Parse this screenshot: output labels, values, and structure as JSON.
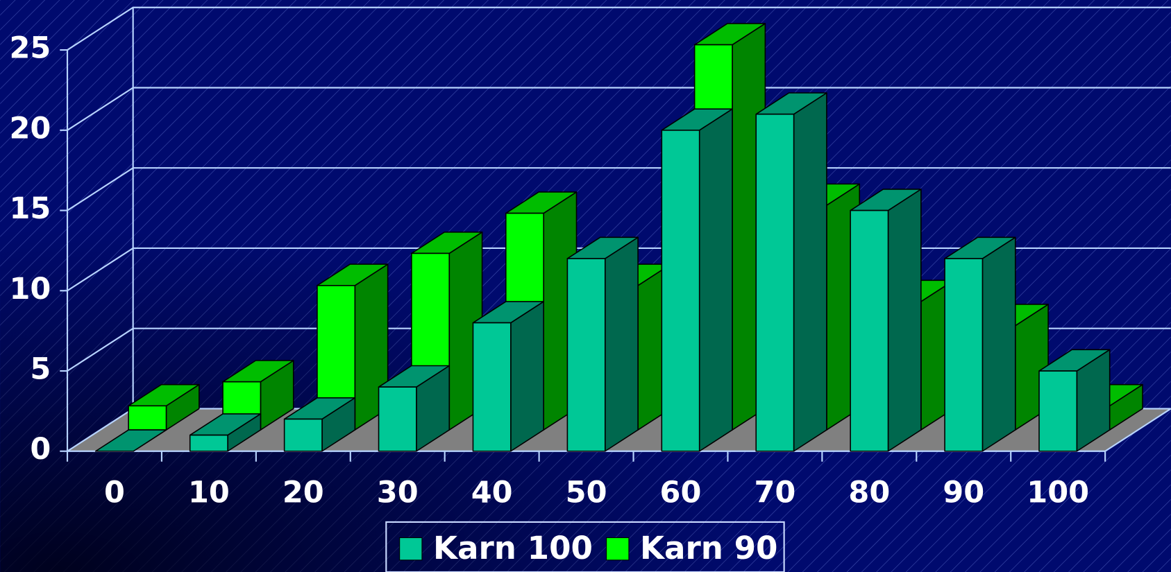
{
  "chart_data": {
    "type": "bar3d",
    "categories": [
      "0",
      "10",
      "20",
      "30",
      "40",
      "50",
      "60",
      "70",
      "80",
      "90",
      "100"
    ],
    "series": [
      {
        "name": "Karn 100",
        "color": "#00c896",
        "values": [
          0,
          1,
          2,
          4,
          8,
          12,
          20,
          21,
          15,
          12,
          5
        ]
      },
      {
        "name": "Karn 90",
        "color": "#00ff00",
        "values": [
          1.5,
          3,
          9,
          11,
          13.5,
          9,
          24,
          14,
          8,
          6.5,
          1.5
        ]
      }
    ],
    "ylim": [
      0,
      25
    ],
    "yticks": [
      0,
      5,
      10,
      15,
      20,
      25
    ],
    "grid": true
  }
}
